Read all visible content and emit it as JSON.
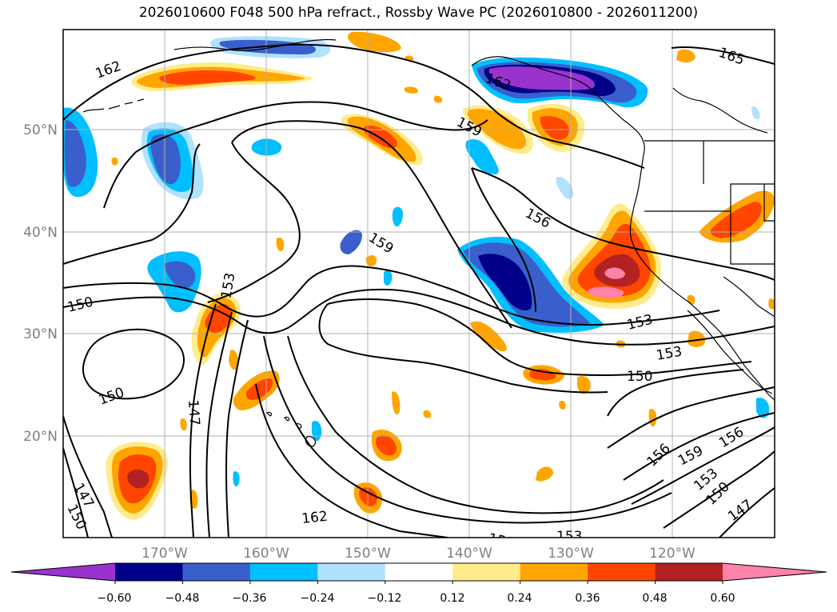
{
  "title": "2026010600 F048 500 hPa refract., Rossby Wave PC (2026010800 - 2026011200)",
  "lat_labels": [
    "50°N",
    "40°N",
    "30°N",
    "20°N"
  ],
  "lon_labels": [
    "170°W",
    "160°W",
    "150°W",
    "140°W",
    "130°W",
    "120°W"
  ],
  "colorbar": {
    "colors": [
      "#9a32cd",
      "#00008b",
      "#3a5fcd",
      "#00bfff",
      "#b0e2ff",
      "#ffffff",
      "#ffec8b",
      "#ffa500",
      "#ff4500",
      "#b22222",
      "#ff83a8"
    ],
    "tick_labels": [
      "−0.60",
      "−0.48",
      "−0.36",
      "−0.24",
      "−0.12",
      "0.12",
      "0.24",
      "0.36",
      "0.48",
      "0.60"
    ]
  },
  "contour_labels": [
    "162",
    "165",
    "162",
    "159",
    "156",
    "159",
    "153",
    "150",
    "153",
    "153",
    "150",
    "150",
    "147",
    "147",
    "150",
    "162",
    "156",
    "159",
    "156",
    "153",
    "150",
    "147",
    "150",
    "153"
  ]
}
